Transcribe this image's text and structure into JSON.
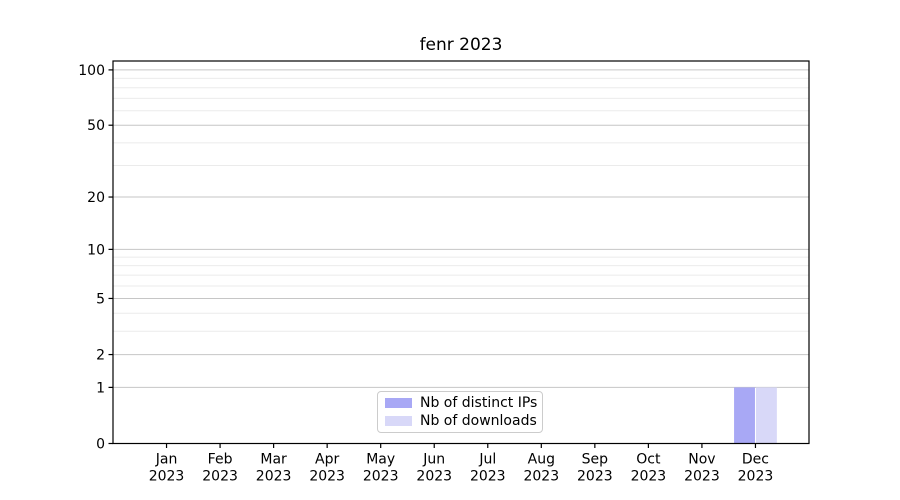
{
  "chart_data": {
    "type": "bar",
    "title": "fenr 2023",
    "categories": [
      "Jan 2023",
      "Feb 2023",
      "Mar 2023",
      "Apr 2023",
      "May 2023",
      "Jun 2023",
      "Jul 2023",
      "Aug 2023",
      "Sep 2023",
      "Oct 2023",
      "Nov 2023",
      "Dec 2023"
    ],
    "series": [
      {
        "name": "Nb of distinct IPs",
        "color": "#a8a8f5",
        "values": [
          0,
          0,
          0,
          0,
          0,
          0,
          0,
          0,
          0,
          0,
          0,
          1
        ]
      },
      {
        "name": "Nb of downloads",
        "color": "#d8d8f8",
        "values": [
          0,
          0,
          0,
          0,
          0,
          0,
          0,
          0,
          0,
          0,
          0,
          1
        ]
      }
    ],
    "xlabel": "",
    "ylabel": "",
    "y_scale": "log10(value+1)",
    "y_major_ticks": [
      0,
      1,
      2,
      5,
      10,
      20,
      50,
      100
    ],
    "y_minor_gridlines": [
      3,
      4,
      6,
      7,
      8,
      9,
      30,
      40,
      60,
      70,
      80,
      90
    ],
    "ylim": [
      0,
      112
    ],
    "grid": true,
    "legend_position": "lower center"
  },
  "colors": {
    "background": "#ffffff",
    "axis": "#000000",
    "grid_major": "#c6c6c6",
    "grid_minor": "#ebebeb",
    "legend_border": "#cccccc",
    "text": "#000000"
  }
}
